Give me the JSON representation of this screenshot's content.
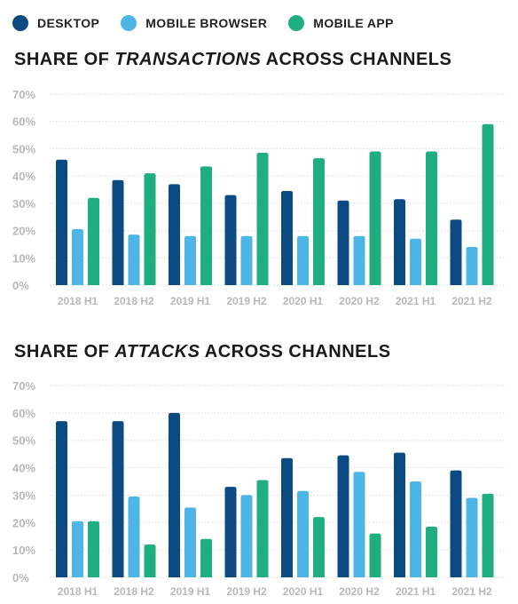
{
  "legend": [
    {
      "label": "DESKTOP",
      "color": "#0c4a82"
    },
    {
      "label": "MOBILE BROWSER",
      "color": "#4db6e6"
    },
    {
      "label": "MOBILE APP",
      "color": "#1fae82"
    }
  ],
  "chart_data": [
    {
      "type": "bar",
      "title_pre": "SHARE OF ",
      "title_em": "TRANSACTIONS",
      "title_post": " ACROSS CHANNELS",
      "categories": [
        "2018 H1",
        "2018 H2",
        "2019 H1",
        "2019 H2",
        "2020 H1",
        "2020 H2",
        "2021 H1",
        "2021 H2"
      ],
      "y_ticks": [
        "0%",
        "10%",
        "20%",
        "30%",
        "40%",
        "50%",
        "60%",
        "70%"
      ],
      "ylim": [
        0,
        70
      ],
      "grid": true,
      "legend_position": "top",
      "series": [
        {
          "name": "DESKTOP",
          "color": "#0c4a82",
          "values": [
            46,
            38.5,
            37,
            33,
            34.5,
            31,
            31.5,
            24
          ]
        },
        {
          "name": "MOBILE BROWSER",
          "color": "#4db6e6",
          "values": [
            20.5,
            18.5,
            18,
            18,
            18,
            18,
            17,
            14
          ]
        },
        {
          "name": "MOBILE APP",
          "color": "#1fae82",
          "values": [
            32,
            41,
            43.5,
            48.5,
            46.5,
            49,
            49,
            59
          ]
        }
      ]
    },
    {
      "type": "bar",
      "title_pre": "SHARE OF ",
      "title_em": "ATTACKS",
      "title_post": " ACROSS CHANNELS",
      "categories": [
        "2018 H1",
        "2018 H2",
        "2019 H1",
        "2019 H2",
        "2020 H1",
        "2020 H2",
        "2021 H1",
        "2021 H2"
      ],
      "y_ticks": [
        "0%",
        "10%",
        "20%",
        "30%",
        "40%",
        "50%",
        "60%",
        "70%"
      ],
      "ylim": [
        0,
        70
      ],
      "grid": true,
      "legend_position": "top",
      "series": [
        {
          "name": "DESKTOP",
          "color": "#0c4a82",
          "values": [
            57,
            57,
            60,
            33,
            43.5,
            44.5,
            45.5,
            39
          ]
        },
        {
          "name": "MOBILE BROWSER",
          "color": "#4db6e6",
          "values": [
            20.5,
            29.5,
            25.5,
            30,
            31.5,
            38.5,
            35,
            29
          ]
        },
        {
          "name": "MOBILE APP",
          "color": "#1fae82",
          "values": [
            20.5,
            12,
            14,
            35.5,
            22,
            16,
            18.5,
            30.5
          ]
        }
      ]
    }
  ]
}
